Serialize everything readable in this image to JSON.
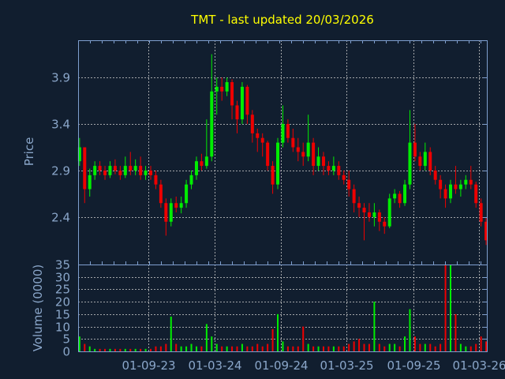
{
  "chart_data": [
    {
      "type": "candlestick",
      "title": "TMT - last updated 20/03/2026",
      "ylabel": "Price",
      "ylim": [
        1.89,
        4.3
      ],
      "yticks": [
        "2.4",
        "2.9",
        "3.4",
        "3.9"
      ],
      "grid": true,
      "colors": {
        "up": "#00ee00",
        "down": "#ee0000",
        "background": "#111e2f",
        "axis": "#7f9fcf",
        "grid": "#c8c8c8",
        "title": "#ffff00"
      },
      "bars": [
        [
          "2023-02-24",
          3.0,
          3.25,
          2.95,
          3.15,
          6
        ],
        [
          "2023-03-10",
          3.15,
          3.15,
          2.55,
          2.7,
          3
        ],
        [
          "2023-03-24",
          2.7,
          2.92,
          2.62,
          2.85,
          2
        ],
        [
          "2023-04-07",
          2.85,
          3.0,
          2.8,
          2.95,
          1
        ],
        [
          "2023-04-21",
          2.95,
          3.0,
          2.85,
          2.9,
          1
        ],
        [
          "2023-05-05",
          2.9,
          2.95,
          2.8,
          2.85,
          1
        ],
        [
          "2023-05-19",
          2.85,
          3.0,
          2.82,
          2.95,
          1
        ],
        [
          "2023-06-02",
          2.95,
          3.02,
          2.86,
          2.9,
          1
        ],
        [
          "2023-06-16",
          2.9,
          2.95,
          2.8,
          2.85,
          1
        ],
        [
          "2023-06-30",
          2.85,
          3.05,
          2.82,
          2.95,
          1
        ],
        [
          "2023-07-14",
          2.95,
          3.1,
          2.85,
          2.9,
          1
        ],
        [
          "2023-07-28",
          2.9,
          3.02,
          2.85,
          2.95,
          1
        ],
        [
          "2023-08-11",
          2.95,
          3.05,
          2.8,
          2.85,
          1
        ],
        [
          "2023-08-25",
          2.85,
          2.95,
          2.8,
          2.9,
          1
        ],
        [
          "2023-09-08",
          2.9,
          2.95,
          2.8,
          2.85,
          1
        ],
        [
          "2023-09-22",
          2.85,
          2.9,
          2.7,
          2.75,
          2
        ],
        [
          "2023-10-06",
          2.75,
          2.8,
          2.5,
          2.55,
          2
        ],
        [
          "2023-10-20",
          2.55,
          2.6,
          2.2,
          2.35,
          3
        ],
        [
          "2023-11-03",
          2.35,
          2.6,
          2.3,
          2.55,
          14
        ],
        [
          "2023-11-17",
          2.55,
          2.62,
          2.45,
          2.5,
          3
        ],
        [
          "2023-12-01",
          2.5,
          2.62,
          2.44,
          2.55,
          2
        ],
        [
          "2023-12-15",
          2.55,
          2.8,
          2.5,
          2.75,
          2
        ],
        [
          "2023-12-29",
          2.75,
          2.9,
          2.7,
          2.85,
          3
        ],
        [
          "2024-01-12",
          2.85,
          3.05,
          2.8,
          3.0,
          2
        ],
        [
          "2024-01-26",
          3.0,
          3.08,
          2.9,
          2.95,
          2
        ],
        [
          "2024-02-09",
          2.95,
          3.45,
          2.92,
          3.05,
          11
        ],
        [
          "2024-02-23",
          3.05,
          4.15,
          3.0,
          3.75,
          6
        ],
        [
          "2024-03-08",
          3.75,
          3.9,
          3.5,
          3.8,
          3
        ],
        [
          "2024-03-22",
          3.8,
          3.9,
          3.65,
          3.75,
          2
        ],
        [
          "2024-04-05",
          3.75,
          3.9,
          3.7,
          3.85,
          2
        ],
        [
          "2024-04-19",
          3.85,
          3.88,
          3.45,
          3.6,
          2
        ],
        [
          "2024-05-03",
          3.6,
          3.65,
          3.3,
          3.45,
          2
        ],
        [
          "2024-05-17",
          3.45,
          3.85,
          3.4,
          3.8,
          3
        ],
        [
          "2024-05-31",
          3.8,
          3.82,
          3.4,
          3.5,
          2
        ],
        [
          "2024-06-14",
          3.5,
          3.55,
          3.2,
          3.3,
          2
        ],
        [
          "2024-06-28",
          3.3,
          3.35,
          3.1,
          3.25,
          3
        ],
        [
          "2024-07-12",
          3.25,
          3.3,
          3.05,
          3.2,
          2
        ],
        [
          "2024-07-26",
          3.2,
          3.22,
          2.9,
          2.95,
          3
        ],
        [
          "2024-08-09",
          2.95,
          3.0,
          2.65,
          2.75,
          9
        ],
        [
          "2024-08-23",
          2.75,
          3.25,
          2.7,
          3.2,
          15
        ],
        [
          "2024-09-06",
          3.2,
          3.6,
          3.15,
          3.4,
          4
        ],
        [
          "2024-09-20",
          3.4,
          3.45,
          3.2,
          3.25,
          2
        ],
        [
          "2024-10-04",
          3.25,
          3.35,
          3.1,
          3.15,
          2
        ],
        [
          "2024-10-18",
          3.15,
          3.25,
          3.0,
          3.1,
          2
        ],
        [
          "2024-11-01",
          3.1,
          3.2,
          2.95,
          3.05,
          10
        ],
        [
          "2024-11-15",
          3.05,
          3.5,
          3.0,
          3.2,
          3
        ],
        [
          "2024-11-29",
          3.2,
          3.25,
          2.85,
          2.95,
          2
        ],
        [
          "2024-12-13",
          2.95,
          3.15,
          2.9,
          3.05,
          2
        ],
        [
          "2024-12-27",
          3.05,
          3.1,
          2.85,
          2.95,
          2
        ],
        [
          "2025-01-10",
          2.95,
          3.0,
          2.85,
          2.9,
          2
        ],
        [
          "2025-01-24",
          2.9,
          3.05,
          2.85,
          2.95,
          2
        ],
        [
          "2025-02-07",
          2.95,
          3.0,
          2.8,
          2.85,
          2
        ],
        [
          "2025-02-21",
          2.85,
          2.9,
          2.75,
          2.8,
          2
        ],
        [
          "2025-03-07",
          2.8,
          2.9,
          2.62,
          2.7,
          3
        ],
        [
          "2025-03-21",
          2.7,
          2.75,
          2.45,
          2.55,
          4
        ],
        [
          "2025-04-04",
          2.55,
          2.62,
          2.4,
          2.5,
          5
        ],
        [
          "2025-04-18",
          2.5,
          2.55,
          2.15,
          2.45,
          3
        ],
        [
          "2025-05-02",
          2.45,
          2.55,
          2.35,
          2.4,
          3
        ],
        [
          "2025-05-16",
          2.4,
          2.55,
          2.3,
          2.45,
          20
        ],
        [
          "2025-05-30",
          2.45,
          2.48,
          2.25,
          2.35,
          3
        ],
        [
          "2025-06-13",
          2.35,
          2.4,
          2.22,
          2.3,
          2
        ],
        [
          "2025-06-27",
          2.3,
          2.65,
          2.28,
          2.6,
          3
        ],
        [
          "2025-07-11",
          2.6,
          2.7,
          2.55,
          2.65,
          3
        ],
        [
          "2025-07-25",
          2.65,
          2.68,
          2.5,
          2.55,
          2
        ],
        [
          "2025-08-08",
          2.55,
          2.8,
          2.52,
          2.75,
          6
        ],
        [
          "2025-08-22",
          2.75,
          3.55,
          2.7,
          3.2,
          17
        ],
        [
          "2025-09-05",
          3.2,
          3.4,
          3.0,
          3.05,
          6
        ],
        [
          "2025-09-19",
          3.05,
          3.1,
          2.9,
          2.95,
          3
        ],
        [
          "2025-10-03",
          2.95,
          3.2,
          2.9,
          3.1,
          3
        ],
        [
          "2025-10-17",
          3.1,
          3.15,
          2.85,
          2.9,
          3
        ],
        [
          "2025-10-31",
          2.9,
          2.95,
          2.75,
          2.8,
          2
        ],
        [
          "2025-11-14",
          2.8,
          2.85,
          2.6,
          2.7,
          3
        ],
        [
          "2025-11-28",
          2.7,
          2.75,
          2.5,
          2.6,
          35
        ],
        [
          "2025-12-12",
          2.6,
          2.8,
          2.55,
          2.75,
          35
        ],
        [
          "2025-12-26",
          2.75,
          2.95,
          2.65,
          2.7,
          15
        ],
        [
          "2026-01-09",
          2.7,
          2.8,
          2.62,
          2.75,
          3
        ],
        [
          "2026-01-23",
          2.75,
          2.85,
          2.7,
          2.8,
          2
        ],
        [
          "2026-02-06",
          2.8,
          2.95,
          2.7,
          2.75,
          2
        ],
        [
          "2026-02-20",
          2.75,
          2.78,
          2.5,
          2.55,
          3
        ],
        [
          "2026-03-06",
          2.55,
          2.6,
          2.3,
          2.35,
          6
        ],
        [
          "2026-03-20",
          2.35,
          2.4,
          2.1,
          2.15,
          4
        ]
      ]
    },
    {
      "type": "bar",
      "ylabel": "Volume (0000)",
      "ylim": [
        0,
        35
      ],
      "yticks": [
        "0",
        "5",
        "10",
        "15",
        "20",
        "25",
        "30",
        "35"
      ],
      "xlim": [
        "2023-02-20",
        "2026-03-22"
      ],
      "xticks": [
        {
          "date": "2023-09-01",
          "label": "01-09-23"
        },
        {
          "date": "2024-03-01",
          "label": "01-03-24"
        },
        {
          "date": "2024-09-01",
          "label": "01-09-24"
        },
        {
          "date": "2025-03-01",
          "label": "01-03-25"
        },
        {
          "date": "2025-09-01",
          "label": "01-09-25"
        },
        {
          "date": "2026-03-01",
          "label": "01-03-26"
        }
      ],
      "grid": true
    }
  ]
}
